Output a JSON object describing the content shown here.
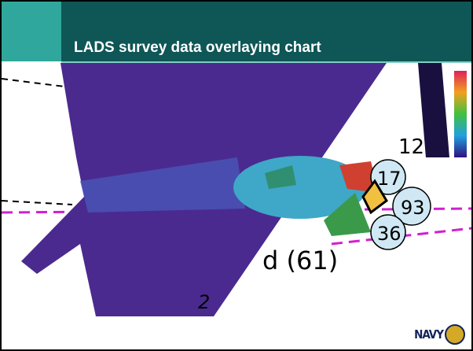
{
  "header": {
    "title": "LADS survey data overlaying chart"
  },
  "image": {
    "labels": [
      "12",
      "17",
      "93",
      "36",
      "d (61)",
      "2"
    ]
  },
  "footer": {
    "logo": "NAVY"
  }
}
